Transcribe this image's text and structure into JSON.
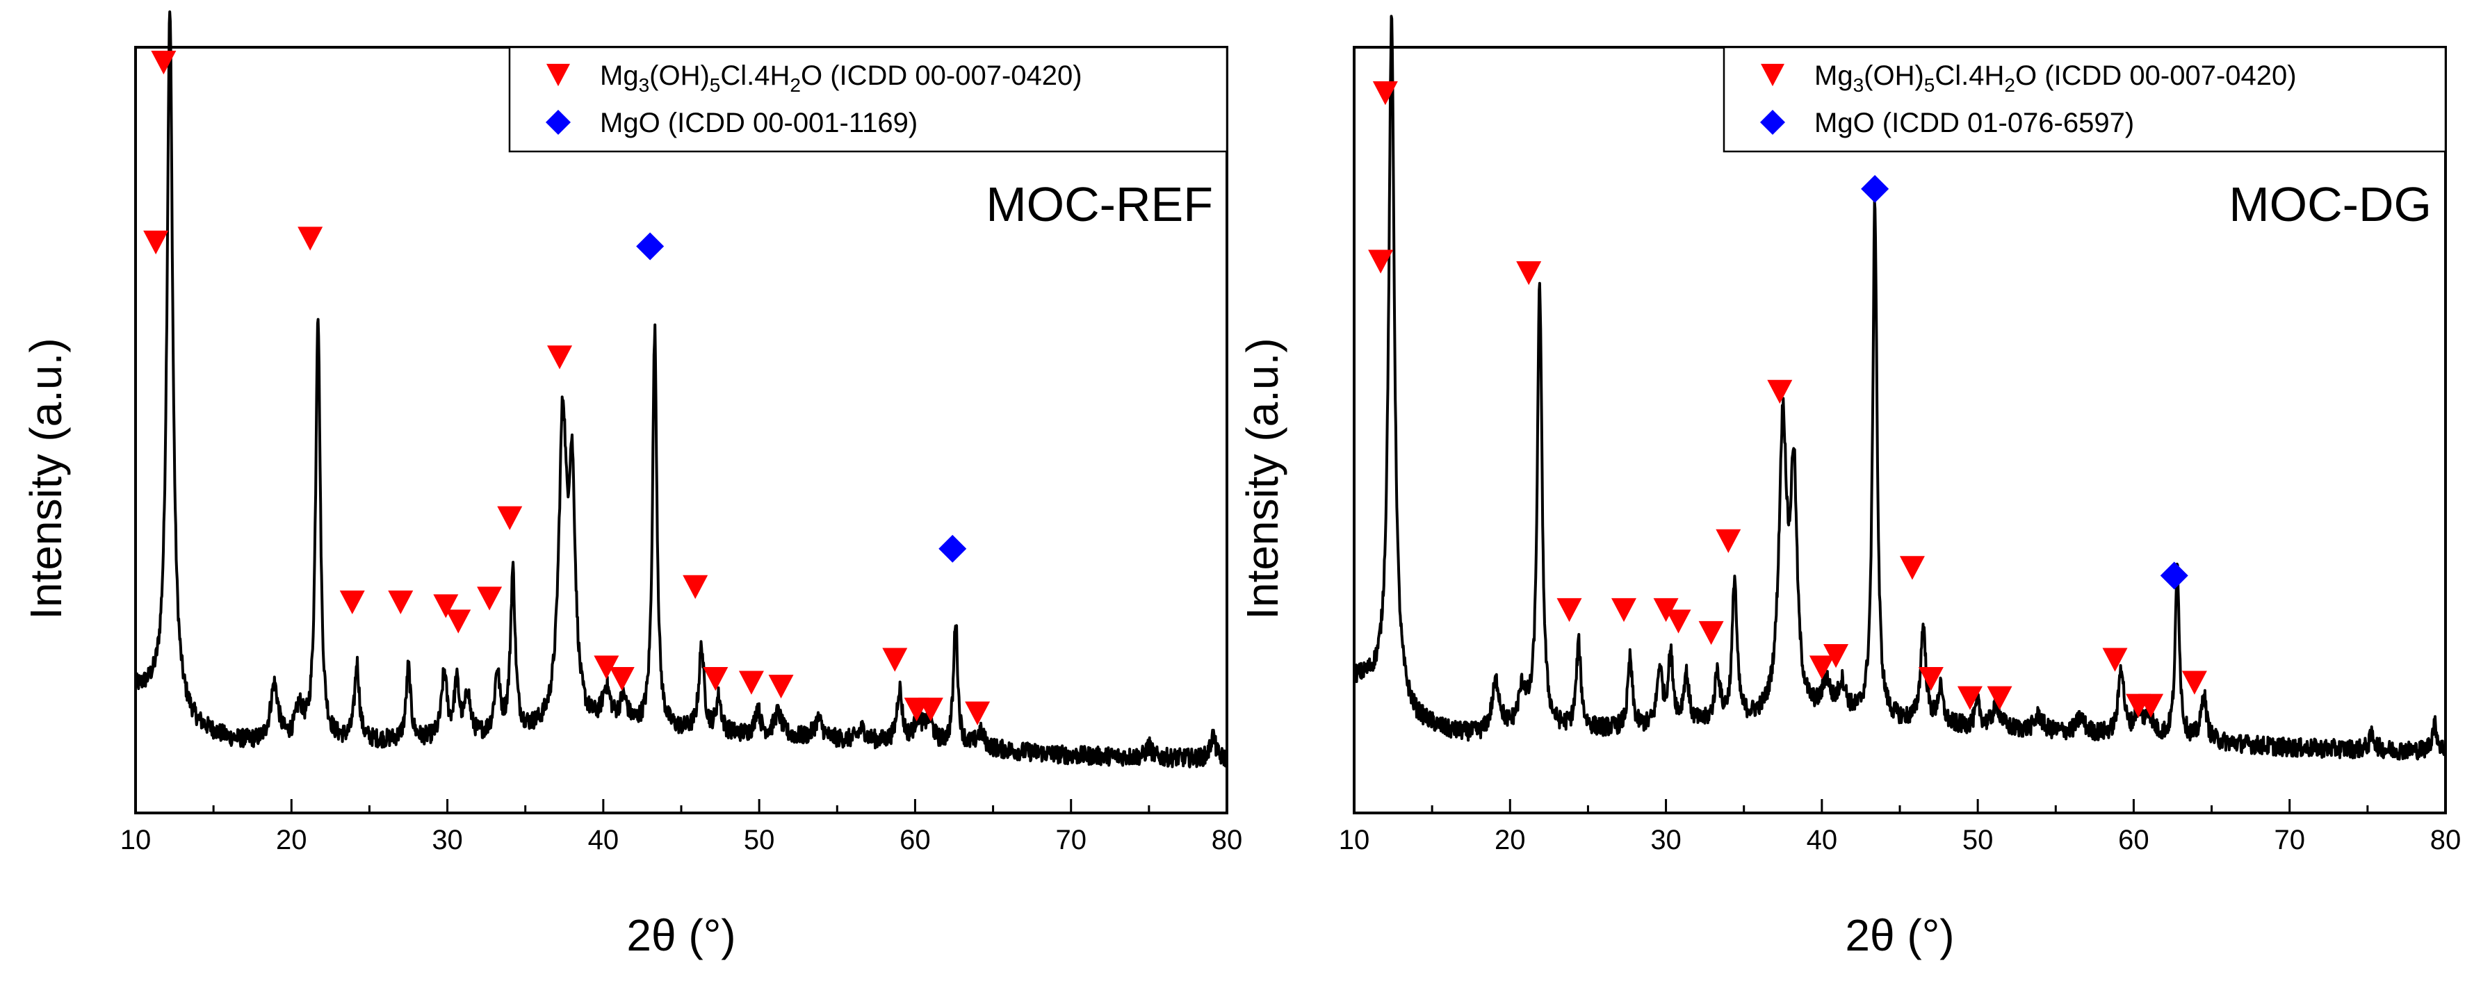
{
  "chart_data": [
    {
      "type": "line",
      "panel_label": "MOC-REF",
      "xlabel": "2θ (°)",
      "ylabel": "Intensity (a.u.)",
      "xlim": [
        10,
        80
      ],
      "ylim": [
        0,
        100
      ],
      "x_ticks": [
        10,
        20,
        30,
        40,
        50,
        60,
        70,
        80
      ],
      "y_ticks_shown": false,
      "legend_position": "top-right",
      "legend": [
        {
          "marker": "triangle-down",
          "color": "#ff0000",
          "label_parts": [
            "Mg",
            "3",
            "(OH)",
            "5",
            "Cl.4H",
            "2",
            "O (ICDD 00-007-0420)"
          ]
        },
        {
          "marker": "diamond",
          "color": "#0000ff",
          "label_parts": [
            "MgO (ICDD 00-001-1169)"
          ]
        }
      ],
      "series": [
        {
          "name": "XRD pattern",
          "color": "#000000",
          "baseline": 9,
          "background": [
            [
              10,
              16
            ],
            [
              11,
              15.5
            ],
            [
              12,
              14.5
            ],
            [
              14,
              11
            ],
            [
              16,
              9.5
            ],
            [
              18,
              9
            ],
            [
              20,
              9
            ],
            [
              30,
              9.5
            ],
            [
              40,
              11
            ],
            [
              50,
              10
            ],
            [
              60,
              9
            ],
            [
              70,
              7.5
            ],
            [
              80,
              7
            ]
          ],
          "peaks": [
            [
              12.2,
              90.5,
              0.22
            ],
            [
              18.9,
              7.5,
              0.3
            ],
            [
              20.5,
              4,
              0.3
            ],
            [
              21.7,
              56,
              0.18
            ],
            [
              24.2,
              10,
              0.18
            ],
            [
              27.5,
              9.5,
              0.17
            ],
            [
              29.8,
              8.5,
              0.2
            ],
            [
              30.6,
              7,
              0.2
            ],
            [
              31.3,
              5.5,
              0.2
            ],
            [
              33.2,
              8,
              0.2
            ],
            [
              34.2,
              21,
              0.18
            ],
            [
              37.4,
              39,
              0.3
            ],
            [
              38.0,
              30,
              0.25
            ],
            [
              40.2,
              4.5,
              0.3
            ],
            [
              41.3,
              3.5,
              0.3
            ],
            [
              43.3,
              52,
              0.17
            ],
            [
              46.3,
              11,
              0.2
            ],
            [
              47.4,
              4.5,
              0.2
            ],
            [
              49.9,
              3.5,
              0.2
            ],
            [
              51.2,
              3,
              0.3
            ],
            [
              53.8,
              2.5,
              0.3
            ],
            [
              56.6,
              1.5,
              0.3
            ],
            [
              59.0,
              7,
              0.2
            ],
            [
              60.2,
              3,
              0.3
            ],
            [
              60.9,
              3,
              0.3
            ],
            [
              62.6,
              16.5,
              0.16
            ],
            [
              64.2,
              2,
              0.3
            ],
            [
              75.0,
              1.5,
              0.2
            ],
            [
              79.1,
              3,
              0.2
            ]
          ]
        }
      ],
      "markers": [
        {
          "phase": "Mg3(OH)5Cl.4H2O",
          "symbol": "triangle-down",
          "color": "#ff0000",
          "points": [
            [
              11.8,
              98
            ],
            [
              11.3,
              74.5
            ],
            [
              21.2,
              75
            ],
            [
              23.9,
              27.5
            ],
            [
              27.0,
              27.5
            ],
            [
              29.9,
              27
            ],
            [
              30.7,
              25
            ],
            [
              32.7,
              28
            ],
            [
              34.0,
              38.5
            ],
            [
              37.2,
              59.5
            ],
            [
              40.2,
              19
            ],
            [
              41.2,
              17.5
            ],
            [
              45.9,
              29.5
            ],
            [
              47.2,
              17.5
            ],
            [
              49.5,
              17
            ],
            [
              51.4,
              16.5
            ],
            [
              58.7,
              20
            ],
            [
              60.1,
              13.5
            ],
            [
              61.0,
              13.5
            ],
            [
              64.0,
              13
            ]
          ]
        },
        {
          "phase": "MgO",
          "symbol": "diamond",
          "color": "#0000ff",
          "points": [
            [
              43.0,
              74
            ],
            [
              62.4,
              34.5
            ]
          ]
        }
      ]
    },
    {
      "type": "line",
      "panel_label": "MOC-DG",
      "xlabel": "2θ (°)",
      "ylabel": "Intensity (a.u.)",
      "xlim": [
        10,
        80
      ],
      "ylim": [
        0,
        100
      ],
      "x_ticks": [
        10,
        20,
        30,
        40,
        50,
        60,
        70,
        80
      ],
      "y_ticks_shown": false,
      "legend_position": "top-right",
      "legend": [
        {
          "marker": "triangle-down",
          "color": "#ff0000",
          "label_parts": [
            "Mg",
            "3",
            "(OH)",
            "5",
            "Cl.4H",
            "2",
            "O (ICDD 00-007-0420)"
          ]
        },
        {
          "marker": "diamond",
          "color": "#0000ff",
          "label_parts": [
            "MgO (ICDD 01-076-6597)"
          ]
        }
      ],
      "series": [
        {
          "name": "XRD pattern",
          "color": "#000000",
          "baseline": 10,
          "background": [
            [
              10,
              17.5
            ],
            [
              11,
              17
            ],
            [
              12,
              16
            ],
            [
              14,
              12
            ],
            [
              16,
              10.5
            ],
            [
              18,
              10
            ],
            [
              20,
              10.5
            ],
            [
              30,
              11
            ],
            [
              40,
              12.5
            ],
            [
              50,
              11
            ],
            [
              60,
              10
            ],
            [
              70,
              8.5
            ],
            [
              80,
              8
            ]
          ],
          "peaks": [
            [
              12.4,
              88,
              0.22
            ],
            [
              19.1,
              6.5,
              0.3
            ],
            [
              20.8,
              5,
              0.3
            ],
            [
              21.9,
              58,
              0.18
            ],
            [
              24.4,
              11,
              0.18
            ],
            [
              27.7,
              9,
              0.17
            ],
            [
              29.6,
              7.5,
              0.2
            ],
            [
              30.3,
              9,
              0.2
            ],
            [
              31.3,
              6.5,
              0.2
            ],
            [
              33.3,
              6.5,
              0.2
            ],
            [
              34.4,
              18.5,
              0.18
            ],
            [
              37.5,
              37.5,
              0.3
            ],
            [
              38.2,
              30,
              0.25
            ],
            [
              40.3,
              4,
              0.3
            ],
            [
              41.3,
              4,
              0.3
            ],
            [
              43.4,
              67.5,
              0.17
            ],
            [
              46.5,
              12.5,
              0.2
            ],
            [
              47.6,
              4.5,
              0.2
            ],
            [
              50.0,
              3,
              0.2
            ],
            [
              51.2,
              3,
              0.3
            ],
            [
              53.9,
              2,
              0.3
            ],
            [
              56.6,
              2,
              0.3
            ],
            [
              59.2,
              9,
              0.2
            ],
            [
              60.3,
              3,
              0.3
            ],
            [
              61.0,
              2.5,
              0.3
            ],
            [
              62.8,
              22.5,
              0.16
            ],
            [
              64.5,
              6,
              0.2
            ],
            [
              75.3,
              2,
              0.2
            ],
            [
              79.3,
              3.5,
              0.2
            ]
          ]
        }
      ],
      "markers": [
        {
          "phase": "Mg3(OH)5Cl.4H2O",
          "symbol": "triangle-down",
          "color": "#ff0000",
          "points": [
            [
              12.0,
              94
            ],
            [
              11.7,
              72
            ],
            [
              21.2,
              70.5
            ],
            [
              23.8,
              26.5
            ],
            [
              27.3,
              26.5
            ],
            [
              30.0,
              26.5
            ],
            [
              30.8,
              25
            ],
            [
              32.9,
              23.5
            ],
            [
              34.0,
              35.5
            ],
            [
              37.3,
              55
            ],
            [
              40.0,
              19
            ],
            [
              40.9,
              20.5
            ],
            [
              45.8,
              32
            ],
            [
              47.0,
              17.5
            ],
            [
              49.5,
              15
            ],
            [
              51.4,
              15
            ],
            [
              58.8,
              20
            ],
            [
              60.3,
              14
            ],
            [
              61.1,
              14
            ],
            [
              63.9,
              17
            ]
          ]
        },
        {
          "phase": "MgO",
          "symbol": "diamond",
          "color": "#0000ff",
          "points": [
            [
              43.4,
              81.5
            ],
            [
              62.6,
              31
            ]
          ]
        }
      ]
    }
  ]
}
